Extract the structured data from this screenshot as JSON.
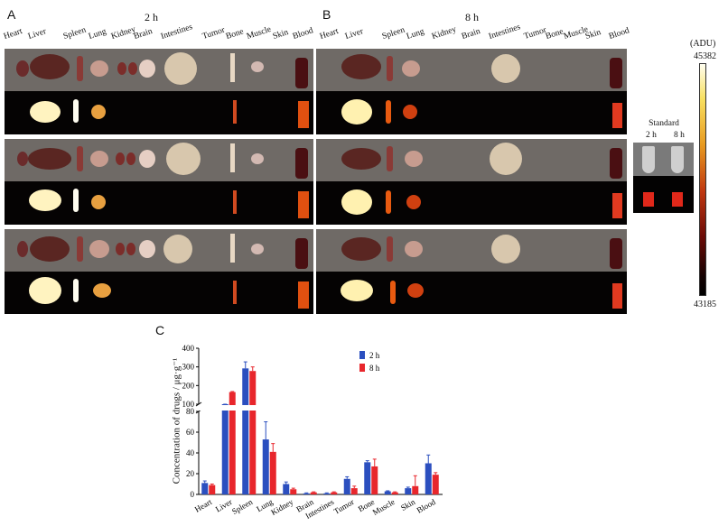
{
  "panel_a": {
    "label": "A",
    "time": "2 h",
    "organs": [
      "Heart",
      "Liver",
      "Spleen",
      "Lung",
      "Kidney",
      "Brain",
      "Intestines",
      "Tumor",
      "Bone",
      "Muscle",
      "Skin",
      "Blood"
    ]
  },
  "panel_b": {
    "label": "B",
    "time": "8 h",
    "organs": [
      "Heart",
      "Liver",
      "Spleen",
      "Lung",
      "Kidney",
      "Brain",
      "Intestines",
      "Tumor",
      "Bone",
      "Muscle",
      "Skin",
      "Blood"
    ]
  },
  "standard": {
    "label": "Standard",
    "t1": "2 h",
    "t2": "8 h"
  },
  "colorbar": {
    "unit": "(ADU)",
    "max": "45382",
    "min": "43185"
  },
  "panel_c_label": "C",
  "chart_data": {
    "type": "bar",
    "categories": [
      "Heart",
      "Liver",
      "Spleen",
      "Lung",
      "Kidney",
      "Brain",
      "Intestines",
      "Tumor",
      "Bone",
      "Muscle",
      "Skin",
      "Blood"
    ],
    "ylabel": "Concentration of drugs / μg·g⁻¹",
    "xlabel": "",
    "y_axis_break": {
      "lower_range": [
        0,
        80
      ],
      "upper_range": [
        100,
        400
      ]
    },
    "lower_ticks": [
      0,
      20,
      40,
      60,
      80
    ],
    "upper_ticks": [
      100,
      200,
      300,
      400
    ],
    "legend_position": "top-right",
    "series": [
      {
        "name": "2 h",
        "color": "#2b4fbf",
        "values": [
          11,
          100,
          292,
          53,
          10,
          1,
          1,
          15,
          31,
          3,
          6,
          30
        ],
        "errors": [
          2,
          0,
          35,
          17,
          2,
          0.5,
          0.5,
          2,
          1.5,
          0.5,
          1,
          8
        ]
      },
      {
        "name": "8 h",
        "color": "#e8262c",
        "values": [
          9,
          165,
          278,
          41,
          5,
          2,
          2,
          6,
          27,
          2,
          8,
          19
        ],
        "errors": [
          1,
          3,
          22,
          8,
          1,
          0.5,
          0.5,
          2,
          7,
          0.5,
          10,
          2
        ]
      }
    ]
  }
}
